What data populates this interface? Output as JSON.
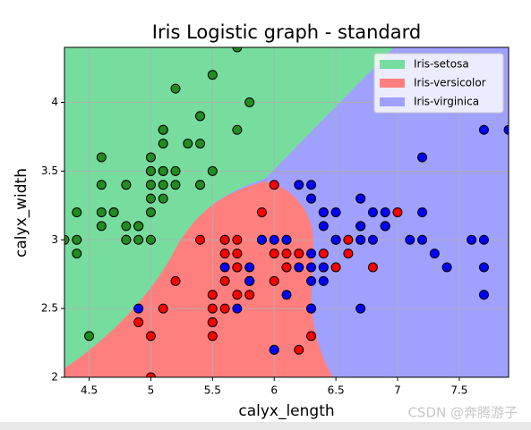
{
  "chart_data": {
    "type": "scatter",
    "title": "Iris Logistic graph - standard",
    "x_label": "calyx_length",
    "y_label": "calyx_width",
    "xlim": [
      4.3,
      7.9
    ],
    "ylim": [
      2.0,
      4.4
    ],
    "xticks": [
      4.5,
      5.0,
      5.5,
      6.0,
      6.5,
      7.0,
      7.5
    ],
    "yticks": [
      2.0,
      2.5,
      3.0,
      3.5,
      4.0
    ],
    "grid": true,
    "legend_position": "upper right",
    "series": [
      {
        "name": "Iris-setosa",
        "color": "#228b22",
        "region_color": "#77dd9f",
        "x": [
          5.1,
          4.9,
          4.7,
          4.6,
          5.0,
          5.4,
          4.6,
          5.0,
          4.4,
          4.9,
          5.4,
          4.8,
          4.8,
          4.3,
          5.8,
          5.7,
          5.4,
          5.1,
          5.7,
          5.1,
          5.4,
          5.1,
          4.6,
          5.1,
          4.8,
          5.0,
          5.0,
          5.2,
          5.2,
          4.7,
          4.8,
          5.4,
          5.2,
          5.5,
          4.9,
          5.0,
          5.5,
          4.9,
          4.4,
          5.1,
          5.0,
          4.5,
          4.4,
          5.0,
          5.1,
          4.8,
          5.1,
          4.6,
          5.3,
          5.0
        ],
        "values": [
          3.5,
          3.0,
          3.2,
          3.1,
          3.6,
          3.9,
          3.4,
          3.4,
          2.9,
          3.1,
          3.7,
          3.4,
          3.0,
          3.0,
          4.0,
          4.4,
          3.9,
          3.5,
          3.8,
          3.8,
          3.4,
          3.7,
          3.6,
          3.3,
          3.4,
          3.0,
          3.4,
          3.5,
          3.4,
          3.2,
          3.1,
          3.4,
          4.1,
          4.2,
          3.1,
          3.2,
          3.5,
          3.1,
          3.0,
          3.4,
          3.5,
          2.3,
          3.2,
          3.5,
          3.8,
          3.0,
          3.8,
          3.2,
          3.7,
          3.3
        ]
      },
      {
        "name": "Iris-versicolor",
        "color": "#ff0000",
        "region_color": "#ff7f7f",
        "x": [
          7.0,
          6.4,
          6.9,
          5.5,
          6.5,
          5.7,
          6.3,
          4.9,
          6.6,
          5.2,
          5.0,
          5.9,
          6.0,
          6.1,
          5.6,
          6.7,
          5.6,
          5.8,
          6.2,
          5.6,
          5.9,
          6.1,
          6.3,
          6.1,
          6.4,
          6.6,
          6.8,
          6.7,
          6.0,
          5.7,
          5.5,
          5.5,
          5.8,
          6.0,
          5.4,
          6.0,
          6.7,
          6.3,
          5.6,
          5.5,
          5.5,
          6.1,
          5.8,
          5.0,
          5.6,
          5.7,
          5.7,
          6.2,
          5.1,
          5.7
        ],
        "values": [
          3.2,
          3.2,
          3.1,
          2.3,
          2.8,
          2.8,
          3.3,
          2.4,
          2.9,
          2.7,
          2.0,
          3.0,
          2.2,
          2.9,
          2.9,
          3.1,
          3.0,
          2.7,
          2.2,
          2.5,
          3.2,
          2.8,
          2.5,
          2.8,
          2.9,
          3.0,
          2.8,
          3.0,
          2.9,
          2.6,
          2.4,
          2.4,
          2.7,
          2.7,
          3.0,
          3.4,
          3.1,
          2.3,
          3.0,
          2.5,
          2.6,
          3.0,
          2.6,
          2.3,
          2.7,
          3.0,
          2.9,
          2.9,
          2.5,
          2.8
        ]
      },
      {
        "name": "Iris-virginica",
        "color": "#0000ff",
        "region_color": "#a0a0ff",
        "x": [
          6.3,
          5.8,
          7.1,
          6.3,
          6.5,
          7.6,
          4.9,
          7.3,
          6.7,
          7.2,
          6.5,
          6.4,
          6.8,
          5.7,
          5.8,
          6.4,
          6.5,
          7.7,
          7.7,
          6.0,
          6.9,
          5.6,
          7.7,
          6.3,
          6.7,
          7.2,
          6.2,
          6.1,
          6.4,
          7.2,
          7.4,
          7.9,
          6.4,
          6.3,
          6.1,
          7.7,
          6.3,
          6.4,
          6.0,
          6.9,
          6.7,
          6.9,
          5.8,
          6.8,
          6.7,
          6.7,
          6.3,
          6.5,
          6.2,
          5.9
        ],
        "values": [
          3.3,
          2.7,
          3.0,
          2.9,
          3.0,
          3.0,
          2.5,
          2.9,
          2.5,
          3.6,
          3.2,
          2.7,
          3.0,
          2.5,
          2.8,
          3.2,
          3.0,
          3.8,
          2.6,
          2.2,
          3.2,
          2.8,
          2.8,
          2.7,
          3.3,
          3.2,
          2.8,
          3.0,
          2.8,
          3.0,
          2.8,
          3.8,
          2.8,
          2.8,
          2.6,
          3.0,
          3.4,
          3.1,
          3.0,
          3.1,
          3.1,
          3.1,
          2.7,
          3.2,
          3.3,
          3.0,
          2.5,
          3.0,
          3.4,
          3.0
        ]
      }
    ],
    "watermark": "CSDN @奔腾游子"
  }
}
